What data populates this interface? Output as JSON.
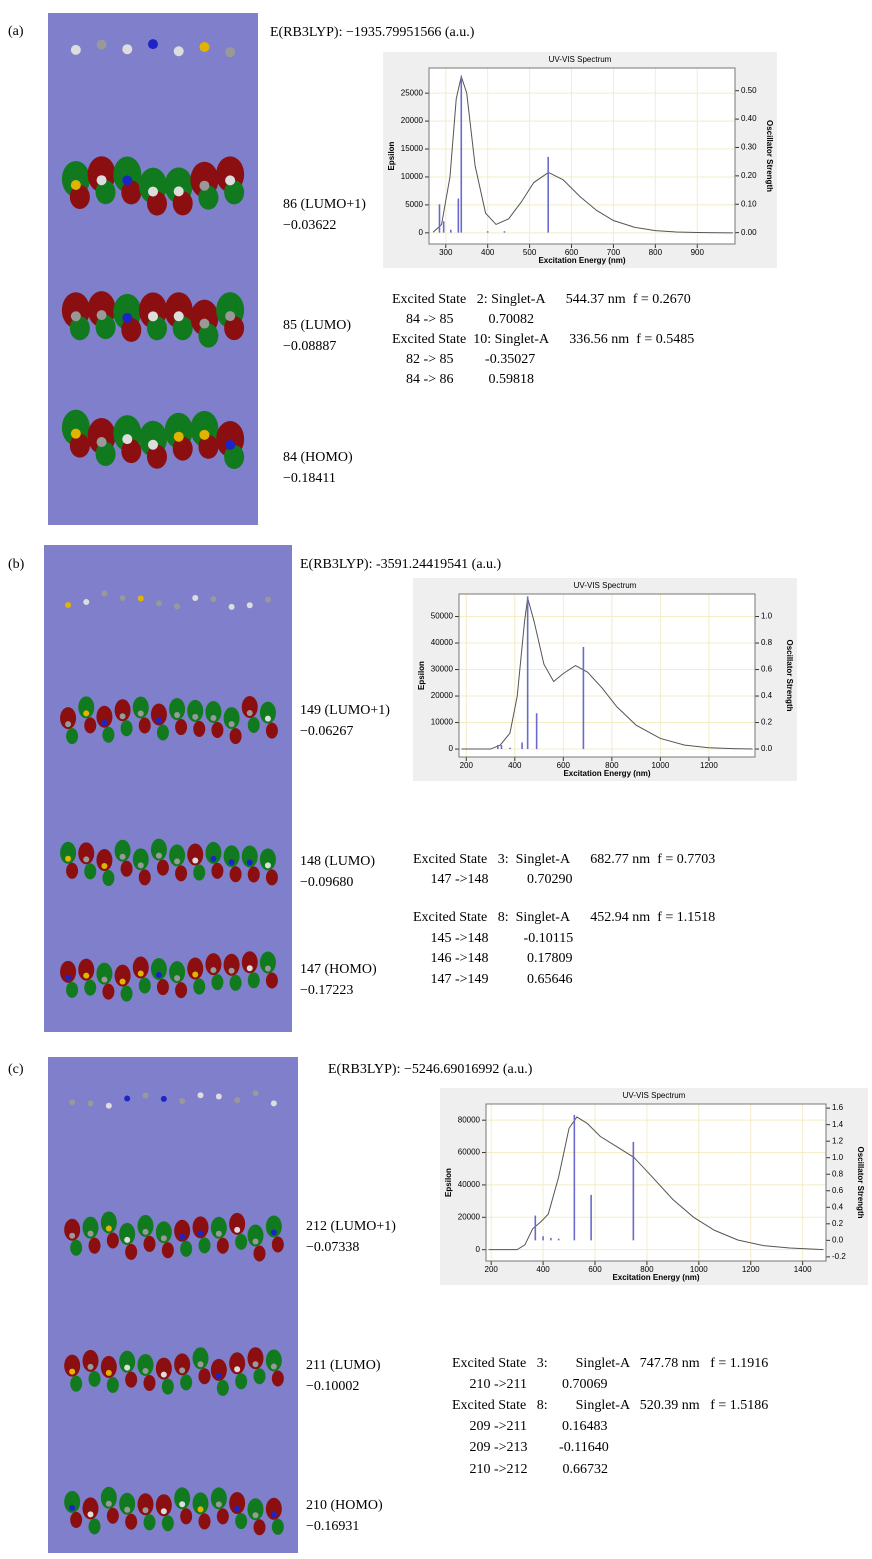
{
  "panels": [
    {
      "label": "(a)",
      "energy": "E(RB3LYP): −1935.79951566 (a.u.)",
      "orbitals": [
        {
          "name": "86 (LUMO+1)",
          "energy": "−0.03622"
        },
        {
          "name": "85 (LUMO)",
          "energy": "−0.08887"
        },
        {
          "name": "84 (HOMO)",
          "energy": "−0.18411"
        }
      ],
      "excited": [
        "Excited State   2: Singlet-A      544.37 nm  f = 0.2670",
        "    84 -> 85          0.70082",
        "Excited State  10: Singlet-A      336.56 nm  f = 0.5485",
        "    82 -> 85         -0.35027",
        "    84 -> 86          0.59818"
      ]
    },
    {
      "label": "(b)",
      "energy": "E(RB3LYP): -3591.24419541 (a.u.)",
      "orbitals": [
        {
          "name": "149 (LUMO+1)",
          "energy": "−0.06267"
        },
        {
          "name": "148 (LUMO)",
          "energy": "−0.09680"
        },
        {
          "name": "147 (HOMO)",
          "energy": "−0.17223"
        }
      ],
      "excited": [
        "Excited State   3:  Singlet-A      682.77 nm  f = 0.7703",
        "     147 ->148           0.70290",
        "Excited State   8:  Singlet-A      452.94 nm  f = 1.1518",
        "     145 ->148          -0.10115",
        "     146 ->148           0.17809",
        "     147 ->149           0.65646"
      ]
    },
    {
      "label": "(c)",
      "energy": "E(RB3LYP): −5246.69016992 (a.u.)",
      "orbitals": [
        {
          "name": "212 (LUMO+1)",
          "energy": "−0.07338"
        },
        {
          "name": "211 (LUMO)",
          "energy": "−0.10002"
        },
        {
          "name": "210 (HOMO)",
          "energy": "−0.16931"
        }
      ],
      "excited": [
        "Excited State   3:        Singlet-A   747.78 nm   f = 1.1916",
        "     210 ->211          0.70069",
        "Excited State   8:        Singlet-A   520.39 nm   f = 1.5186",
        "     209 ->211          0.16483",
        "     209 ->213         -0.11640",
        "     210 ->212          0.66732"
      ]
    }
  ],
  "chart_data": [
    {
      "type": "line",
      "title": "UV-VIS Spectrum",
      "xlabel": "Excitation Energy (nm)",
      "ylabel": "Epsilon",
      "y2label": "Oscillator Strength",
      "xlim": [
        260,
        990
      ],
      "xticks": [
        300,
        400,
        500,
        600,
        700,
        800,
        900
      ],
      "ylim": [
        -2000,
        29500
      ],
      "yticks": [
        0,
        5000,
        10000,
        15000,
        20000,
        25000
      ],
      "y2lim": [
        -0.04,
        0.58
      ],
      "y2ticks": [
        {
          "value": 0,
          "label": "0.00"
        },
        {
          "value": 0.1,
          "label": "0.10"
        },
        {
          "value": 0.2,
          "label": "0.20"
        },
        {
          "value": 0.3,
          "label": "0.30"
        },
        {
          "value": 0.4,
          "label": "0.40"
        },
        {
          "value": 0.5,
          "label": "0.50"
        }
      ],
      "grid": true,
      "series": [
        {
          "color": "#555555",
          "x": [
            270,
            290,
            310,
            325,
            337,
            350,
            370,
            395,
            420,
            450,
            480,
            510,
            545,
            580,
            620,
            660,
            700,
            750,
            800,
            850,
            900,
            950,
            985
          ],
          "values": [
            100,
            1500,
            10000,
            24000,
            28000,
            25000,
            12000,
            3500,
            1500,
            2500,
            5500,
            9000,
            10800,
            9500,
            6500,
            4000,
            2200,
            1000,
            400,
            150,
            50,
            10,
            0
          ]
        },
        {
          "color": "#6a6acd",
          "axis": "y2",
          "style": "stick",
          "x": [
            285,
            295,
            312,
            330,
            337,
            400,
            440,
            544.37
          ],
          "values": [
            0.1,
            0.04,
            0.01,
            0.12,
            0.5485,
            0.005,
            0.005,
            0.267
          ]
        }
      ]
    },
    {
      "type": "line",
      "title": "UV-VIS Spectrum",
      "xlabel": "Excitation Energy (nm)",
      "ylabel": "Epsilon",
      "y2label": "Oscillator Strength",
      "xlim": [
        170,
        1390
      ],
      "xticks": [
        200,
        400,
        600,
        800,
        1000,
        1200
      ],
      "ylim": [
        -3000,
        58500
      ],
      "yticks": [
        0,
        10000,
        20000,
        30000,
        40000,
        50000
      ],
      "y2lim": [
        -0.06,
        1.17
      ],
      "y2ticks": [
        {
          "value": 0,
          "label": "0.0"
        },
        {
          "value": 0.2,
          "label": "0.2"
        },
        {
          "value": 0.4,
          "label": "0.4"
        },
        {
          "value": 0.6,
          "label": "0.6"
        },
        {
          "value": 0.8,
          "label": "0.8"
        },
        {
          "value": 1,
          "label": "1.0"
        }
      ],
      "grid": true,
      "series": [
        {
          "color": "#555555",
          "x": [
            180,
            300,
            340,
            380,
            410,
            440,
            453,
            480,
            520,
            560,
            600,
            650,
            700,
            760,
            820,
            900,
            1000,
            1100,
            1200,
            1300,
            1380
          ],
          "values": [
            0,
            0,
            1500,
            6000,
            20000,
            48000,
            57000,
            48000,
            32000,
            25500,
            28500,
            31500,
            29000,
            23000,
            16000,
            9000,
            4000,
            1500,
            500,
            150,
            0
          ]
        },
        {
          "color": "#6a6acd",
          "axis": "y2",
          "style": "stick",
          "x": [
            330,
            345,
            380,
            430,
            452.94,
            490,
            682.77
          ],
          "values": [
            0.03,
            0.03,
            0.01,
            0.05,
            1.1518,
            0.27,
            0.7703
          ]
        }
      ]
    },
    {
      "type": "line",
      "title": "UV-VIS Spectrum",
      "xlabel": "Excitation Energy (nm)",
      "ylabel": "Epsilon",
      "y2label": "Oscillator Strength",
      "xlim": [
        180,
        1490
      ],
      "xticks": [
        200,
        400,
        600,
        800,
        1000,
        1200,
        1400
      ],
      "ylim": [
        -7000,
        90000
      ],
      "yticks": [
        0,
        20000,
        40000,
        60000,
        80000
      ],
      "y2lim": [
        -0.25,
        1.65
      ],
      "y2ticks": [
        {
          "value": -0.2,
          "label": "-0.2"
        },
        {
          "value": 0,
          "label": "0.0"
        },
        {
          "value": 0.2,
          "label": "0.2"
        },
        {
          "value": 0.4,
          "label": "0.4"
        },
        {
          "value": 0.6,
          "label": "0.6"
        },
        {
          "value": 0.8,
          "label": "0.8"
        },
        {
          "value": 1,
          "label": "1.0"
        },
        {
          "value": 1.2,
          "label": "1.2"
        },
        {
          "value": 1.4,
          "label": "1.4"
        },
        {
          "value": 1.6,
          "label": "1.6"
        }
      ],
      "grid": true,
      "series": [
        {
          "color": "#555555",
          "x": [
            190,
            300,
            330,
            360,
            390,
            420,
            460,
            500,
            530,
            570,
            620,
            680,
            750,
            820,
            900,
            980,
            1060,
            1150,
            1250,
            1350,
            1480
          ],
          "values": [
            0,
            0,
            3000,
            13000,
            17000,
            22000,
            45000,
            75000,
            82000,
            78000,
            70000,
            64000,
            57000,
            45000,
            31000,
            20000,
            12000,
            6000,
            2500,
            1000,
            0
          ]
        },
        {
          "color": "#6a6acd",
          "axis": "y2",
          "style": "stick",
          "x": [
            370,
            400,
            430,
            460,
            520.39,
            585,
            747.78
          ],
          "values": [
            0.3,
            0.05,
            0.03,
            0.02,
            1.5186,
            0.55,
            1.1916
          ]
        }
      ]
    }
  ]
}
